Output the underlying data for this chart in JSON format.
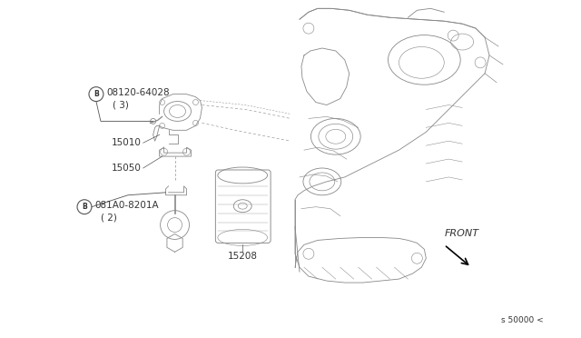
{
  "background_color": "#ffffff",
  "line_color": "#888888",
  "dark_line_color": "#555555",
  "text_color": "#333333",
  "labels": {
    "part1_num": "08120-64028",
    "part1_qty": "( 3)",
    "part2_num": "15010",
    "part3_num": "15050",
    "part4_num": "081A0-8201A",
    "part4_qty": "( 2)",
    "part5_num": "15208",
    "front_label": "FRONT",
    "ref_num": "s 50000 <"
  }
}
